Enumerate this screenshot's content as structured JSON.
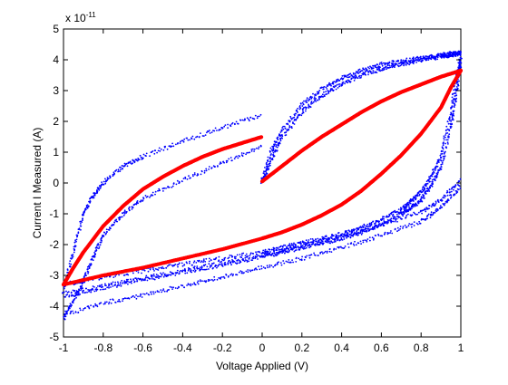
{
  "chart_data": {
    "type": "scatter",
    "xlabel": "Voltage Applied (V)",
    "ylabel": "Current I Measured (A)",
    "exponent_base": "x 10",
    "exponent_power": "-11",
    "xlim": [
      -1,
      1
    ],
    "ylim": [
      -5,
      5
    ],
    "grid": false,
    "x_ticks": [
      -1,
      -0.8,
      -0.6,
      -0.4,
      -0.2,
      0,
      0.2,
      0.4,
      0.6,
      0.8,
      1
    ],
    "x_tick_labels": [
      "-1",
      "-0.8",
      "-0.6",
      "-0.4",
      "-0.2",
      "0",
      "0.2",
      "0.4",
      "0.6",
      "0.8",
      "1"
    ],
    "y_ticks": [
      -5,
      -4,
      -3,
      -2,
      -1,
      0,
      1,
      2,
      3,
      4,
      5
    ],
    "y_tick_labels": [
      "-5",
      "-4",
      "-3",
      "-2",
      "-1",
      "0",
      "1",
      "2",
      "3",
      "4",
      "5"
    ],
    "series": [
      {
        "color": "#0000ff",
        "marker": "dots",
        "branches": [
          {
            "x": [
              0,
              0.05,
              0.1,
              0.2,
              0.3,
              0.4,
              0.5,
              0.6,
              0.7,
              0.8,
              0.9,
              0.95,
              1.0
            ],
            "y": [
              0.05,
              0.8,
              1.5,
              2.3,
              2.85,
              3.2,
              3.5,
              3.7,
              3.85,
              4.0,
              4.1,
              4.15,
              4.2
            ]
          },
          {
            "x": [
              0,
              0.05,
              0.1,
              0.2,
              0.3,
              0.4,
              0.5,
              0.6,
              0.7,
              0.8,
              0.9,
              0.95,
              1.0
            ],
            "y": [
              0.1,
              1.1,
              1.7,
              2.55,
              3.05,
              3.4,
              3.65,
              3.85,
              3.95,
              4.05,
              4.15,
              4.2,
              4.25
            ]
          },
          {
            "x": [
              1.0,
              0.98,
              0.95,
              0.9,
              0.85,
              0.8,
              0.75,
              0.7,
              0.6,
              0.5,
              0.4,
              0.3,
              0.2,
              0.1,
              0,
              -0.2,
              -0.4,
              -0.6,
              -0.8,
              -1.0
            ],
            "y": [
              4.1,
              3.5,
              2.3,
              0.9,
              0.2,
              -0.3,
              -0.6,
              -0.85,
              -1.2,
              -1.45,
              -1.65,
              -1.8,
              -1.95,
              -2.1,
              -2.25,
              -2.45,
              -2.65,
              -2.85,
              -3.05,
              -3.3
            ]
          },
          {
            "x": [
              1.0,
              0.98,
              0.95,
              0.9,
              0.85,
              0.8,
              0.75,
              0.7,
              0.6,
              0.5,
              0.4,
              0.3,
              0.2,
              0.1,
              0,
              -0.2,
              -0.4,
              -0.6,
              -0.8,
              -1.0
            ],
            "y": [
              4.0,
              3.0,
              1.8,
              0.5,
              -0.1,
              -0.55,
              -0.8,
              -1.0,
              -1.35,
              -1.6,
              -1.8,
              -1.95,
              -2.1,
              -2.25,
              -2.4,
              -2.65,
              -2.9,
              -3.15,
              -3.4,
              -3.7
            ]
          },
          {
            "x": [
              -1.0,
              -0.95,
              -0.9,
              -0.85,
              -0.8,
              -0.7,
              -0.6,
              -0.4,
              -0.2,
              0
            ],
            "y": [
              -3.5,
              -2.2,
              -1.0,
              -0.4,
              0.0,
              0.55,
              0.85,
              1.35,
              1.8,
              2.2
            ]
          },
          {
            "x": [
              -1.0,
              -0.95,
              -0.9,
              -0.85,
              -0.8,
              -0.7,
              -0.6,
              -0.4,
              -0.2,
              0
            ],
            "y": [
              -4.4,
              -3.8,
              -3.2,
              -2.4,
              -1.7,
              -1.0,
              -0.5,
              0.1,
              0.65,
              1.2
            ]
          },
          {
            "x": [
              -1.0,
              -0.8,
              -0.6,
              -0.4,
              -0.2,
              0,
              0.2,
              0.4,
              0.6,
              0.8,
              0.9,
              1.0
            ],
            "y": [
              -3.6,
              -3.35,
              -3.1,
              -2.85,
              -2.6,
              -2.35,
              -2.05,
              -1.75,
              -1.35,
              -0.95,
              -0.55,
              0.1
            ]
          },
          {
            "x": [
              -1.0,
              -0.8,
              -0.6,
              -0.4,
              -0.2,
              0,
              0.2,
              0.4,
              0.6,
              0.8,
              0.9,
              1.0
            ],
            "y": [
              -4.3,
              -3.9,
              -3.65,
              -3.35,
              -3.05,
              -2.75,
              -2.45,
              -2.1,
              -1.7,
              -1.25,
              -0.8,
              -0.1
            ]
          }
        ]
      },
      {
        "color": "#ff0000",
        "marker": "thick-dots",
        "branches": [
          {
            "x": [
              0,
              0.1,
              0.2,
              0.3,
              0.4,
              0.5,
              0.6,
              0.7,
              0.8,
              0.9,
              1.0
            ],
            "y": [
              0.05,
              0.55,
              1.05,
              1.5,
              1.9,
              2.3,
              2.65,
              2.95,
              3.2,
              3.45,
              3.65
            ]
          },
          {
            "x": [
              1.0,
              0.95,
              0.9,
              0.8,
              0.7,
              0.6,
              0.5,
              0.4,
              0.3,
              0.2,
              0.1,
              0,
              -0.2,
              -0.4,
              -0.6,
              -0.8,
              -1.0
            ],
            "y": [
              3.65,
              3.1,
              2.45,
              1.6,
              0.9,
              0.3,
              -0.25,
              -0.7,
              -1.05,
              -1.35,
              -1.6,
              -1.8,
              -2.15,
              -2.45,
              -2.75,
              -3.0,
              -3.3
            ]
          },
          {
            "x": [
              -1.0,
              -0.95,
              -0.9,
              -0.8,
              -0.7,
              -0.6,
              -0.5,
              -0.4,
              -0.3,
              -0.2,
              -0.1,
              0
            ],
            "y": [
              -3.3,
              -2.75,
              -2.25,
              -1.4,
              -0.75,
              -0.2,
              0.2,
              0.55,
              0.85,
              1.1,
              1.3,
              1.5
            ]
          }
        ]
      }
    ]
  }
}
